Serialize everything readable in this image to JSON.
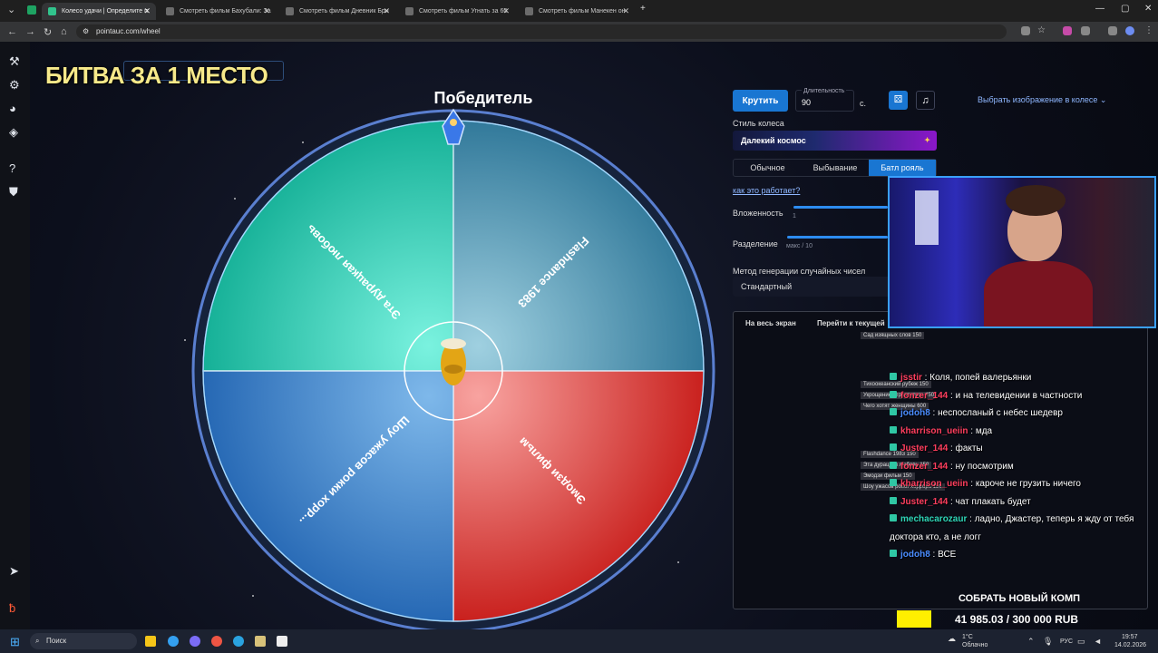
{
  "browser": {
    "tabs": [
      {
        "title": "Колесо удачи | Определите п",
        "active": true
      },
      {
        "title": "Смотреть фильм Бахубали: За",
        "active": false
      },
      {
        "title": "Смотреть фильм Дневник Бри",
        "active": false
      },
      {
        "title": "Смотреть фильм Угнать за 60",
        "active": false
      },
      {
        "title": "Смотреть фильм Манекен он",
        "active": false
      }
    ],
    "url": "pointauc.com/wheel"
  },
  "overlay": {
    "battle_title": "БИТВА ЗА 1 МЕСТО"
  },
  "wheel": {
    "title": "Победитель",
    "segments": [
      {
        "label": "Эта дурацкая любовь",
        "color": "#1fd1b7"
      },
      {
        "label": "Flashdance 1983",
        "color": "#2e8aa8"
      },
      {
        "label": "Эмодзи фильм",
        "color": "#e5302c"
      },
      {
        "label": "Шоу ужасов рокки хорр...",
        "color": "#2e86cf"
      }
    ]
  },
  "controls": {
    "spin_label": "Крутить",
    "duration_label": "Длительность",
    "duration_value": "90",
    "seconds_unit": "с.",
    "image_select": "Выбрать изображение в колесе",
    "style_label": "Стиль колеса",
    "style_value": "Далекий космос",
    "modes": [
      "Обычное",
      "Выбывание",
      "Батл рояль"
    ],
    "active_mode": "Батл рояль",
    "how_link": "как это работает?",
    "nesting_label": "Вложенность",
    "nesting_value": "1",
    "split_label": "Разделение",
    "split_hint": "макс / 10",
    "rng_label": "Метод генерации случайных чисел",
    "rng_value": "Стандартный"
  },
  "panel": {
    "fullscreen": "На весь экран",
    "goto_current": "Перейти к текущей",
    "mini_lots": [
      {
        "name": "Сад изящных слов",
        "value": "150"
      },
      {
        "name": "Тихоокеанский рубеж",
        "value": "150"
      },
      {
        "name": "Укрощение строптивого",
        "value": "450"
      },
      {
        "name": "Чего хотят женщины",
        "value": "600"
      },
      {
        "name": "Flashdance 1983",
        "value": "150"
      },
      {
        "name": "Эта дурацкая любовь",
        "value": "150"
      },
      {
        "name": "Эмодзи фильм",
        "value": "150"
      },
      {
        "name": "Шоу ужасов рокки хоррора",
        "value": "150"
      }
    ]
  },
  "chat": [
    {
      "user": "jsstir",
      "color": "#ff3e5e",
      "text": "Коля, попей валерьянки"
    },
    {
      "user": "fonzer_144",
      "color": "#ff3e5e",
      "text": "и на телевидении в частности"
    },
    {
      "user": "jodoh8",
      "color": "#4a8cff",
      "text": "неспосланый с небес шедевр"
    },
    {
      "user": "kharrison_ueiin",
      "color": "#ff3e5e",
      "text": "мда"
    },
    {
      "user": "Juster_144",
      "color": "#ff3e5e",
      "text": "факты"
    },
    {
      "user": "fonzer_144",
      "color": "#ff3e5e",
      "text": "ну посмотрим"
    },
    {
      "user": "kharrison_ueiin",
      "color": "#ff3e5e",
      "text": "кароче не грузить ничего"
    },
    {
      "user": "Juster_144",
      "color": "#ff3e5e",
      "text": "чат плакать будет"
    },
    {
      "user": "mechacarozaur",
      "color": "#2fd6b8",
      "text": "ладно, Джастер, теперь я жду от тебя"
    },
    {
      "user": "",
      "color": "#ffffff",
      "text": "доктора кто, а не логг"
    },
    {
      "user": "jodoh8",
      "color": "#4a8cff",
      "text": "ВСЕ"
    }
  ],
  "goal": {
    "title": "СОБРАТЬ НОВЫЙ КОМП",
    "value": "41 985.03 / 300 000 RUB",
    "progress": 0.14
  },
  "taskbar": {
    "search": "Поиск",
    "weather_temp": "1°C",
    "weather_desc": "Облачно",
    "lang": "РУС",
    "time": "19:57",
    "date": "14.02.2026"
  },
  "icons": {
    "sidebar": [
      "hammer-icon",
      "gear-icon",
      "wheel-icon",
      "layers-icon",
      "help-icon",
      "shield-icon",
      "telegram-icon",
      "brand-icon"
    ]
  }
}
